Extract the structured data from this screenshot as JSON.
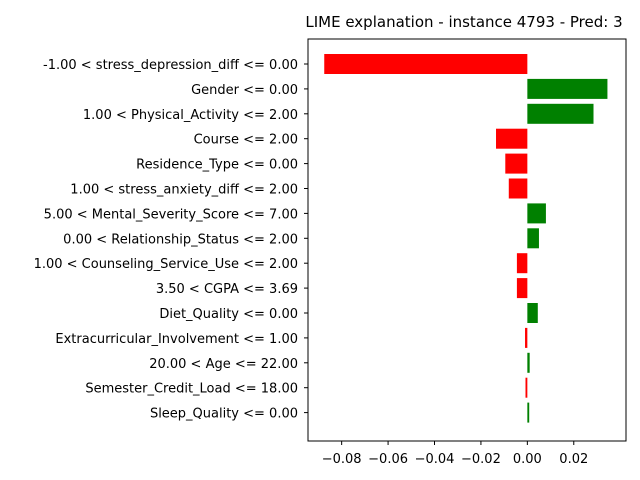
{
  "chart_data": {
    "type": "bar",
    "orientation": "horizontal",
    "title": "LIME explanation - instance 4793 - Pred: 3",
    "xlabel": "",
    "ylabel": "",
    "xlim": [
      -0.0945,
      0.0425
    ],
    "grid": false,
    "legend": "none",
    "colors": {
      "positive": "#008000",
      "negative": "#ff0000"
    },
    "xticks": [
      {
        "value": -0.08,
        "label": "−0.08"
      },
      {
        "value": -0.06,
        "label": "−0.06"
      },
      {
        "value": -0.04,
        "label": "−0.04"
      },
      {
        "value": -0.02,
        "label": "−0.02"
      },
      {
        "value": 0.0,
        "label": "0.00"
      },
      {
        "value": 0.02,
        "label": "0.02"
      }
    ],
    "categories": [
      "-1.00 < stress_depression_diff <= 0.00",
      "Gender <= 0.00",
      "1.00 < Physical_Activity <= 2.00",
      "Course <= 2.00",
      "Residence_Type <= 0.00",
      "1.00 < stress_anxiety_diff <= 2.00",
      "5.00 < Mental_Severity_Score <= 7.00",
      "0.00 < Relationship_Status <= 2.00",
      "1.00 < Counseling_Service_Use <= 2.00",
      "3.50 < CGPA <= 3.69",
      "Diet_Quality <= 0.00",
      "Extracurricular_Involvement <= 1.00",
      "20.00 < Age <= 22.00",
      "Semester_Credit_Load <= 18.00",
      "Sleep_Quality <= 0.00"
    ],
    "values": [
      -0.0875,
      0.0345,
      0.0285,
      -0.0135,
      -0.0095,
      -0.008,
      0.008,
      0.005,
      -0.0045,
      -0.0045,
      0.0045,
      -0.001,
      0.001,
      -0.0008,
      0.0008
    ]
  }
}
